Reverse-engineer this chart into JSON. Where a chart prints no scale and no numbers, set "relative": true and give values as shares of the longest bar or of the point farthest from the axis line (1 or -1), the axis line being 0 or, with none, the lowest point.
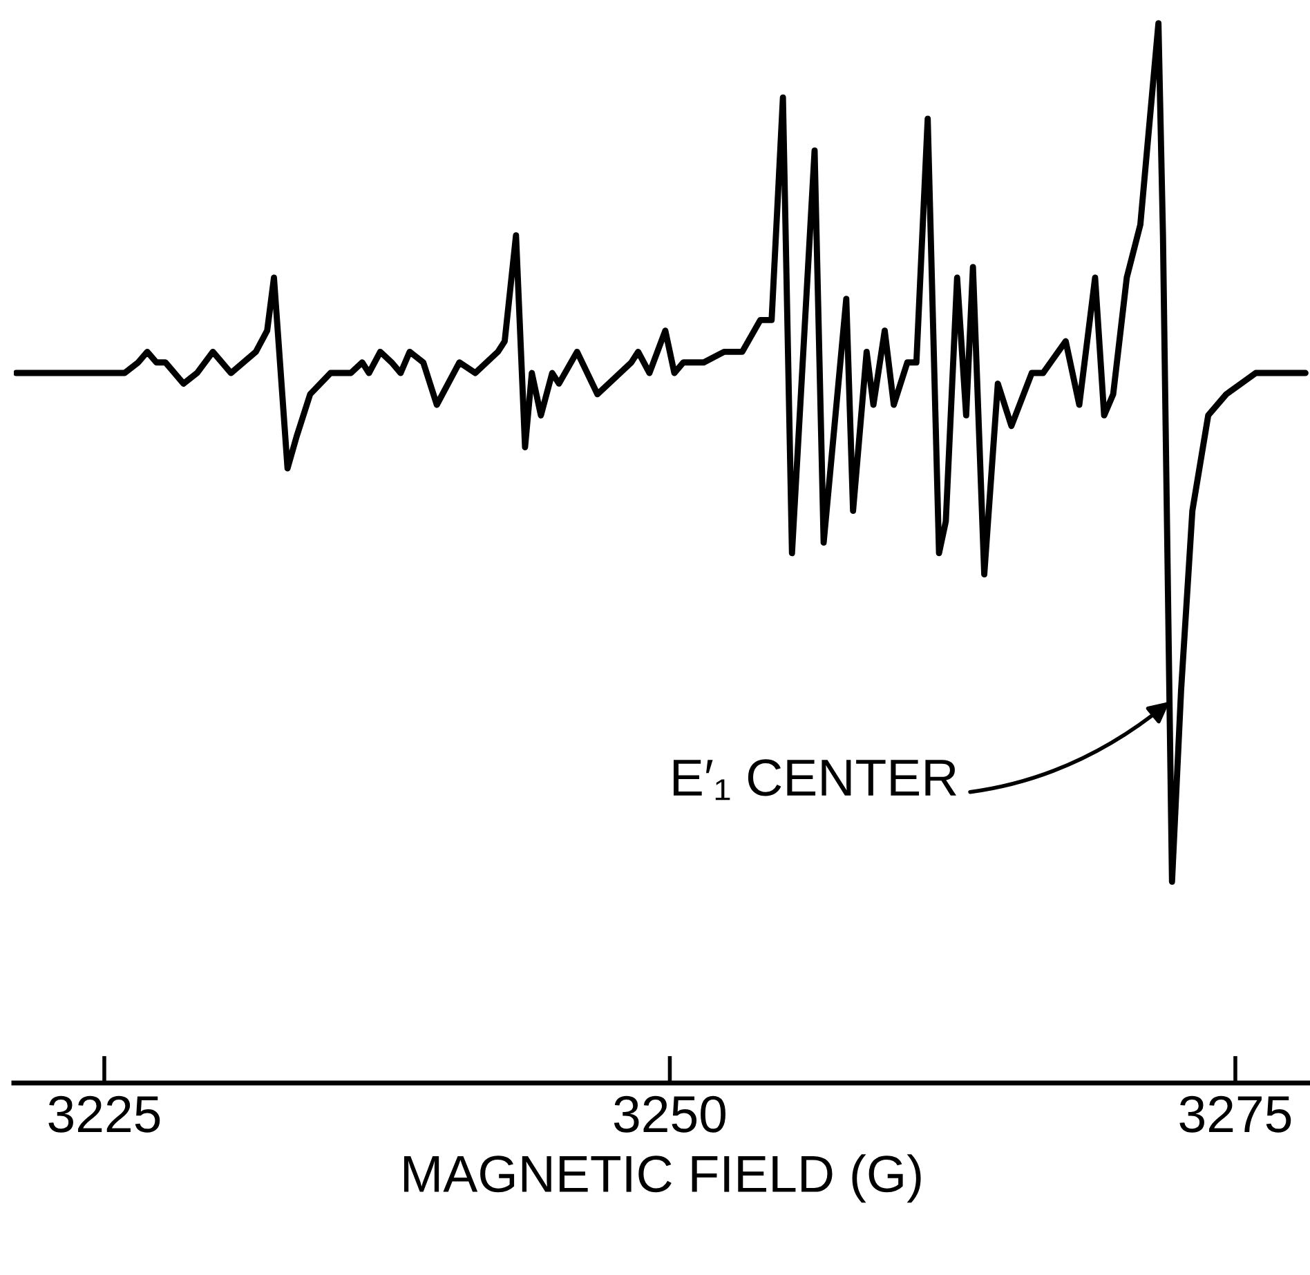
{
  "chart_data": {
    "type": "line",
    "relative": true,
    "xlabel": "MAGNETIC FIELD (G)",
    "xlim": [
      3221.0,
      3278.3
    ],
    "xticks": [
      3225,
      3250,
      3275
    ],
    "tick_labels": "x",
    "grid": false,
    "legend": false,
    "marker": "none",
    "line_style": "solid",
    "series": [
      {
        "color": "#000000",
        "x": [
          3221.1,
          3221.8,
          3222.8,
          3224.4,
          3225.9,
          3226.5,
          3226.9,
          3227.3,
          3227.7,
          3228.5,
          3229.1,
          3229.8,
          3230.6,
          3231.7,
          3232.2,
          3232.5,
          3233.1,
          3233.5,
          3234.1,
          3235.0,
          3235.9,
          3236.4,
          3236.7,
          3237.2,
          3237.7,
          3238.1,
          3238.5,
          3239.1,
          3239.7,
          3240.7,
          3241.4,
          3242.4,
          3242.7,
          3243.2,
          3243.6,
          3243.9,
          3244.3,
          3244.8,
          3245.1,
          3245.9,
          3246.8,
          3248.3,
          3248.6,
          3249.1,
          3249.8,
          3250.2,
          3250.6,
          3251.5,
          3252.4,
          3253.2,
          3254.0,
          3254.5,
          3255.0,
          3255.4,
          3256.4,
          3256.8,
          3257.8,
          3258.1,
          3258.7,
          3259.0,
          3259.5,
          3259.9,
          3260.5,
          3260.9,
          3261.4,
          3261.9,
          3262.2,
          3262.7,
          3263.1,
          3263.4,
          3263.9,
          3264.5,
          3265.1,
          3266.0,
          3266.5,
          3267.5,
          3268.1,
          3268.8,
          3269.2,
          3269.6,
          3270.2,
          3270.8,
          3271.6,
          3271.8,
          3272.2,
          3272.6,
          3273.1,
          3273.8,
          3274.6,
          3275.9,
          3276.8,
          3278.1
        ],
        "values": [
          0.67,
          0.67,
          0.67,
          0.67,
          0.67,
          0.68,
          0.69,
          0.68,
          0.68,
          0.66,
          0.67,
          0.69,
          0.67,
          0.69,
          0.71,
          0.76,
          0.58,
          0.61,
          0.65,
          0.67,
          0.67,
          0.68,
          0.67,
          0.69,
          0.68,
          0.67,
          0.69,
          0.68,
          0.64,
          0.68,
          0.67,
          0.69,
          0.7,
          0.8,
          0.6,
          0.67,
          0.63,
          0.67,
          0.66,
          0.69,
          0.65,
          0.68,
          0.69,
          0.67,
          0.71,
          0.67,
          0.68,
          0.68,
          0.69,
          0.69,
          0.72,
          0.72,
          0.93,
          0.5,
          0.88,
          0.51,
          0.74,
          0.54,
          0.69,
          0.64,
          0.71,
          0.64,
          0.68,
          0.68,
          0.91,
          0.5,
          0.53,
          0.76,
          0.63,
          0.77,
          0.48,
          0.66,
          0.62,
          0.67,
          0.67,
          0.7,
          0.64,
          0.76,
          0.63,
          0.65,
          0.76,
          0.81,
          1,
          0.8,
          0.19,
          0.37,
          0.54,
          0.63,
          0.65,
          0.67,
          0.67,
          0.67
        ]
      }
    ],
    "annotations": [
      {
        "text": "E′₁ CENTER",
        "x": 3272.1,
        "y": 0.36
      }
    ]
  }
}
